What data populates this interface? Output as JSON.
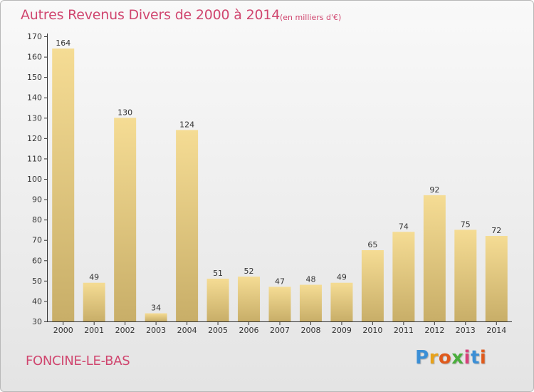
{
  "header": {
    "title": "Autres Revenus Divers de 2000 à 2014",
    "subtitle": "(en milliers d'€)"
  },
  "footer": {
    "city": "FONCINE-LE-BAS",
    "logo_letters": [
      "P",
      "r",
      "o",
      "x",
      "i",
      "t",
      "i"
    ],
    "logo_colors": [
      "#3b8fd6",
      "#e8a21b",
      "#e05a1c",
      "#4aae3c",
      "#d8407a",
      "#3b8fd6",
      "#e05a1c"
    ]
  },
  "chart_data": {
    "type": "bar",
    "categories": [
      "2000",
      "2001",
      "2002",
      "2003",
      "2004",
      "2005",
      "2006",
      "2007",
      "2008",
      "2009",
      "2010",
      "2011",
      "2012",
      "2013",
      "2014"
    ],
    "values": [
      164,
      49,
      130,
      34,
      124,
      51,
      52,
      47,
      48,
      49,
      65,
      74,
      92,
      75,
      72
    ],
    "title": "Autres Revenus Divers de 2000 à 2014",
    "ylim": [
      30,
      170
    ],
    "yticks": [
      30,
      40,
      50,
      60,
      70,
      80,
      90,
      100,
      110,
      120,
      130,
      140,
      150,
      160,
      170
    ],
    "grid": false,
    "bar_color_top": "#f5dc94",
    "bar_color_bottom": "#c8ae68"
  }
}
